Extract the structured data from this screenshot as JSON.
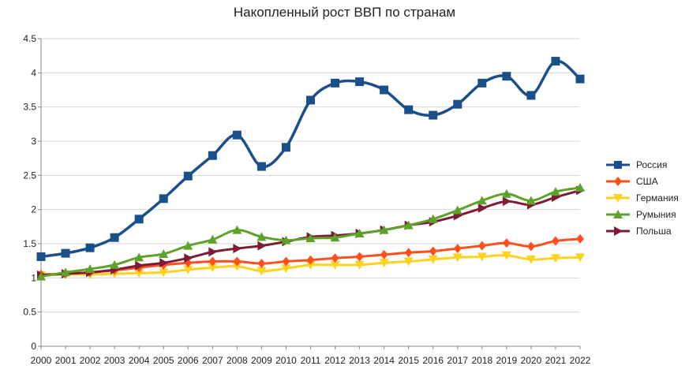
{
  "chart_data": {
    "type": "line",
    "title": "Накопленный рост ВВП по странам",
    "xlabel": "",
    "ylabel": "",
    "x": [
      "2000",
      "2001",
      "2002",
      "2003",
      "2004",
      "2005",
      "2006",
      "2007",
      "2008",
      "2009",
      "2010",
      "2011",
      "2012",
      "2013",
      "2014",
      "2015",
      "2016",
      "2017",
      "2018",
      "2019",
      "2020",
      "2021",
      "2022"
    ],
    "ylim": [
      0,
      4.5
    ],
    "yticks": [
      "0",
      "0.5",
      "1",
      "1.5",
      "2",
      "2.5",
      "3",
      "3.5",
      "4",
      "4.5"
    ],
    "grid": "horizontal",
    "legend": "right",
    "series": [
      {
        "name": "Россия",
        "color": "#1b4f8a",
        "marker": "square",
        "values": [
          1.31,
          1.36,
          1.44,
          1.59,
          1.86,
          2.16,
          2.49,
          2.79,
          3.09,
          2.63,
          2.91,
          3.6,
          3.85,
          3.87,
          3.75,
          3.46,
          3.38,
          3.54,
          3.85,
          3.95,
          3.67,
          4.17,
          3.91
        ]
      },
      {
        "name": "США",
        "color": "#ff4f1f",
        "marker": "diamond",
        "values": [
          1.05,
          1.06,
          1.08,
          1.11,
          1.15,
          1.19,
          1.22,
          1.24,
          1.24,
          1.21,
          1.24,
          1.26,
          1.29,
          1.31,
          1.34,
          1.37,
          1.39,
          1.43,
          1.47,
          1.51,
          1.46,
          1.54,
          1.57
        ]
      },
      {
        "name": "Германия",
        "color": "#ffd21f",
        "marker": "triangle-down",
        "values": [
          1.04,
          1.05,
          1.05,
          1.06,
          1.07,
          1.08,
          1.12,
          1.15,
          1.17,
          1.1,
          1.14,
          1.19,
          1.19,
          1.19,
          1.22,
          1.24,
          1.27,
          1.3,
          1.31,
          1.33,
          1.27,
          1.29,
          1.3
        ]
      },
      {
        "name": "Румыния",
        "color": "#5ea22a",
        "marker": "triangle-up",
        "values": [
          1.02,
          1.08,
          1.13,
          1.19,
          1.3,
          1.35,
          1.47,
          1.56,
          1.7,
          1.6,
          1.55,
          1.58,
          1.59,
          1.65,
          1.7,
          1.77,
          1.86,
          1.99,
          2.13,
          2.23,
          2.13,
          2.26,
          2.32
        ]
      },
      {
        "name": "Польша",
        "color": "#7f1c35",
        "marker": "triangle-right",
        "values": [
          1.04,
          1.06,
          1.08,
          1.12,
          1.18,
          1.22,
          1.29,
          1.38,
          1.43,
          1.47,
          1.53,
          1.6,
          1.62,
          1.65,
          1.7,
          1.77,
          1.82,
          1.91,
          2.02,
          2.12,
          2.07,
          2.18,
          2.28
        ]
      }
    ]
  }
}
